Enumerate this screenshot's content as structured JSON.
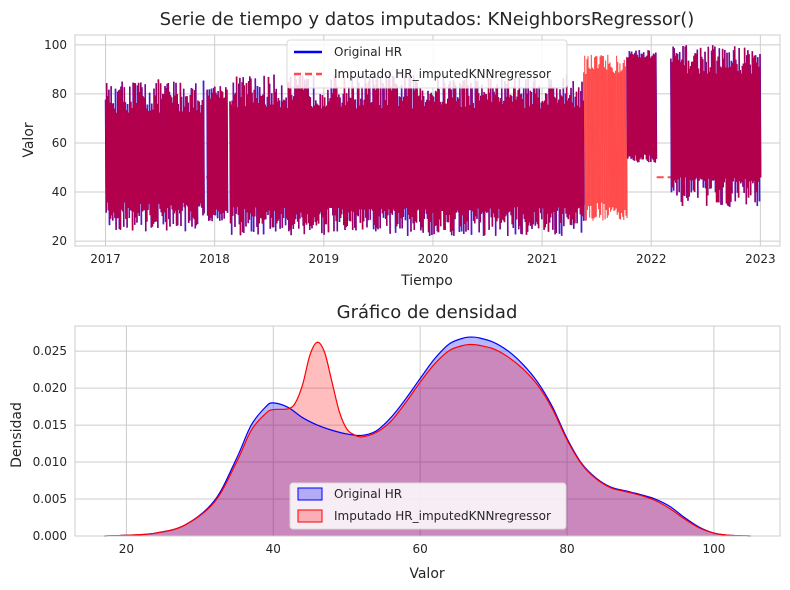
{
  "chart_data": [
    {
      "type": "line",
      "title": "Serie de tiempo y datos imputados: KNeighborsRegressor()",
      "xlabel": "Tiempo",
      "ylabel": "Valor",
      "x_ticks": [
        "2017",
        "2018",
        "2019",
        "2020",
        "2021",
        "2022",
        "2023"
      ],
      "y_ticks": [
        20,
        40,
        60,
        80,
        100
      ],
      "xlim": [
        2016.72,
        2023.18
      ],
      "ylim": [
        18,
        104
      ],
      "grid": true,
      "legend_position": "top-center",
      "series": [
        {
          "name": "Original HR",
          "color": "#0000ff",
          "style": "solid",
          "segments": [
            {
              "start": 2017.0,
              "end": 2017.9,
              "low": [
                24,
                36
              ],
              "high": [
                72,
                86
              ]
            },
            {
              "start": 2017.93,
              "end": 2018.12,
              "low": [
                28,
                34
              ],
              "high": [
                78,
                84
              ]
            },
            {
              "start": 2018.14,
              "end": 2021.38,
              "low": [
                22,
                34
              ],
              "high": [
                74,
                88
              ]
            },
            {
              "start": 2021.78,
              "end": 2022.05,
              "low": [
                52,
                56
              ],
              "high": [
                94,
                98
              ]
            },
            {
              "start": 2022.18,
              "end": 2023.0,
              "low": [
                34,
                46
              ],
              "high": [
                88,
                100
              ]
            }
          ]
        },
        {
          "name": "Imputado HR_imputedKNNregressor",
          "color": "#ff0000",
          "style": "dashed",
          "segments": [
            {
              "start": 2021.38,
              "end": 2021.78,
              "low": [
                28,
                36
              ],
              "high": [
                88,
                96
              ]
            }
          ],
          "flat_gaps": [
            {
              "start": 2017.62,
              "end": 2017.93,
              "value": 46
            },
            {
              "start": 2022.05,
              "end": 2022.18,
              "value": 46
            }
          ]
        }
      ]
    },
    {
      "type": "area",
      "title": "Gráfico de densidad",
      "xlabel": "Valor",
      "ylabel": "Densidad",
      "x_ticks": [
        20,
        40,
        60,
        80,
        100
      ],
      "y_ticks": [
        "0.000",
        "0.005",
        "0.010",
        "0.015",
        "0.020",
        "0.025"
      ],
      "xlim": [
        13,
        109
      ],
      "ylim": [
        0,
        0.0284
      ],
      "grid": true,
      "legend_position": "bottom-center",
      "series": [
        {
          "name": "Original HR",
          "color": "#0000ff",
          "fill": "rgba(0,0,255,0.28)",
          "x": [
            17,
            20,
            24,
            28,
            32,
            35,
            37,
            39,
            40,
            42,
            44,
            46,
            48,
            50,
            52,
            54,
            56,
            58,
            60,
            62,
            64,
            66,
            67,
            68,
            70,
            72,
            74,
            76,
            78,
            80,
            82,
            84,
            86,
            88,
            90,
            92,
            94,
            96,
            98,
            100,
            102,
            105
          ],
          "y": [
            0,
            0.0001,
            0.0004,
            0.0015,
            0.0048,
            0.0105,
            0.015,
            0.0175,
            0.018,
            0.0174,
            0.016,
            0.015,
            0.0143,
            0.0138,
            0.0136,
            0.0142,
            0.016,
            0.0185,
            0.0213,
            0.024,
            0.026,
            0.0268,
            0.0269,
            0.0268,
            0.0262,
            0.025,
            0.0232,
            0.0208,
            0.0175,
            0.0132,
            0.0098,
            0.0078,
            0.0066,
            0.0061,
            0.0056,
            0.005,
            0.004,
            0.0025,
            0.0012,
            0.0004,
            0.0001,
            0
          ]
        },
        {
          "name": "Imputado HR_imputedKNNregressor",
          "color": "#ff0000",
          "fill": "rgba(255,0,0,0.26)",
          "x": [
            17,
            20,
            24,
            28,
            32,
            35,
            37,
            39,
            40,
            42,
            43,
            44,
            45,
            46,
            47,
            48,
            49,
            50,
            51,
            52,
            54,
            56,
            58,
            60,
            62,
            64,
            66,
            67,
            68,
            70,
            72,
            74,
            76,
            78,
            80,
            82,
            84,
            86,
            88,
            90,
            92,
            94,
            96,
            98,
            100,
            102,
            105
          ],
          "y": [
            0,
            0.0001,
            0.0004,
            0.0015,
            0.0046,
            0.01,
            0.0143,
            0.0166,
            0.0171,
            0.0172,
            0.018,
            0.0205,
            0.0245,
            0.0262,
            0.0248,
            0.0208,
            0.0168,
            0.0145,
            0.0137,
            0.0134,
            0.014,
            0.0155,
            0.018,
            0.0208,
            0.0233,
            0.0251,
            0.0258,
            0.0259,
            0.0258,
            0.0253,
            0.0242,
            0.0226,
            0.0204,
            0.0172,
            0.013,
            0.0097,
            0.0077,
            0.0065,
            0.006,
            0.0055,
            0.0048,
            0.0037,
            0.0023,
            0.0011,
            0.0004,
            0.0001,
            0
          ]
        }
      ]
    }
  ]
}
